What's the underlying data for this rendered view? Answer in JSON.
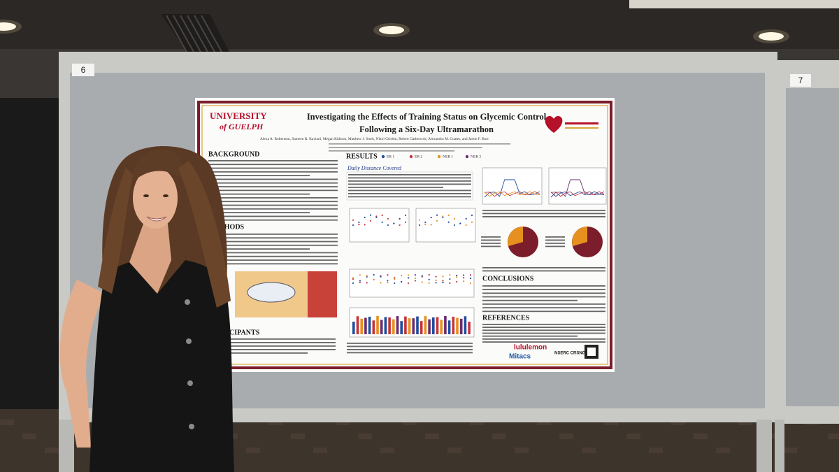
{
  "boards": {
    "left_number": "6",
    "right_number": "7"
  },
  "poster": {
    "logo": {
      "line1": "UNIVERSITY",
      "line2": "of GUELPH"
    },
    "title": {
      "line1": "Investigating the Effects of Training Status on Glycemic Control",
      "line2": "Following a Six-Day Ultramarathon"
    },
    "authors": "Alexa A. Robertson, Sameen R. Kaviani, Megan Kidston, Matthew J. Stork, Nikol Grishin, Robert Gathercole, Alexandra M. Coates, and Jamie F. Burr",
    "sections": {
      "background": "BACKGROUND",
      "methods": "METHODS",
      "participants": "PARTICIPANTS",
      "results": "RESULTS",
      "conclusions": "CONCLUSIONS",
      "references": "REFERENCES"
    },
    "legend": [
      "ER 1",
      "ER 2",
      "NER 1",
      "NER 2"
    ],
    "chart_heading": "Daily Distance Covered",
    "sponsors": [
      "lululemon",
      "Mitacs",
      "NSERC CRSNG"
    ]
  }
}
